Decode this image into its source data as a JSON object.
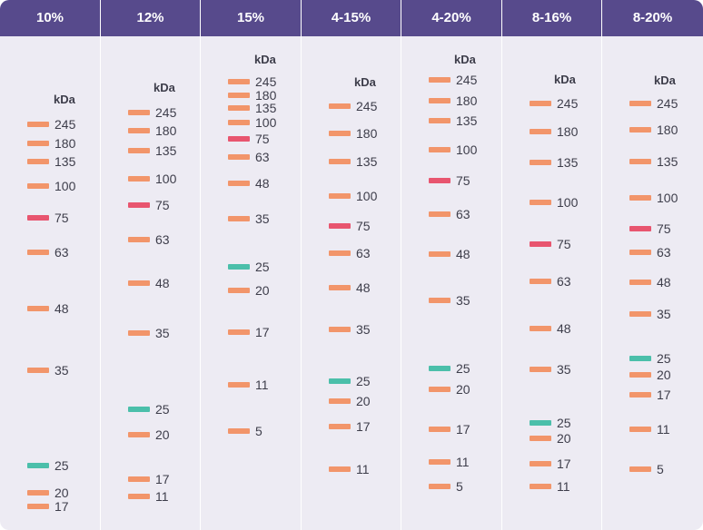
{
  "colors": {
    "header": "#574a8c",
    "background": "#edebf3",
    "band_default": "#f2956a",
    "band_75": "#e8556f",
    "band_25": "#4bbfaa"
  },
  "chart_data": {
    "type": "diagram",
    "unit_label": "kDa",
    "lanes": [
      {
        "title": "10%",
        "bands": [
          {
            "label": "245",
            "value": 245,
            "kind": "default"
          },
          {
            "label": "180",
            "value": 180,
            "kind": "default"
          },
          {
            "label": "135",
            "value": 135,
            "kind": "default"
          },
          {
            "label": "100",
            "value": 100,
            "kind": "default"
          },
          {
            "label": "75",
            "value": 75,
            "kind": "band_75"
          },
          {
            "label": "63",
            "value": 63,
            "kind": "default"
          },
          {
            "label": "48",
            "value": 48,
            "kind": "default"
          },
          {
            "label": "35",
            "value": 35,
            "kind": "default"
          },
          {
            "label": "25",
            "value": 25,
            "kind": "band_25"
          },
          {
            "label": "20",
            "value": 20,
            "kind": "default"
          },
          {
            "label": "17",
            "value": 17,
            "kind": "default"
          }
        ]
      },
      {
        "title": "12%",
        "bands": [
          {
            "label": "245",
            "value": 245,
            "kind": "default"
          },
          {
            "label": "180",
            "value": 180,
            "kind": "default"
          },
          {
            "label": "135",
            "value": 135,
            "kind": "default"
          },
          {
            "label": "100",
            "value": 100,
            "kind": "default"
          },
          {
            "label": "75",
            "value": 75,
            "kind": "band_75"
          },
          {
            "label": "63",
            "value": 63,
            "kind": "default"
          },
          {
            "label": "48",
            "value": 48,
            "kind": "default"
          },
          {
            "label": "35",
            "value": 35,
            "kind": "default"
          },
          {
            "label": "25",
            "value": 25,
            "kind": "band_25"
          },
          {
            "label": "20",
            "value": 20,
            "kind": "default"
          },
          {
            "label": "17",
            "value": 17,
            "kind": "default"
          },
          {
            "label": "11",
            "value": 11,
            "kind": "default"
          }
        ]
      },
      {
        "title": "15%",
        "bands": [
          {
            "label": "245",
            "value": 245,
            "kind": "default"
          },
          {
            "label": "180",
            "value": 180,
            "kind": "default"
          },
          {
            "label": "135",
            "value": 135,
            "kind": "default"
          },
          {
            "label": "100",
            "value": 100,
            "kind": "default"
          },
          {
            "label": "75",
            "value": 75,
            "kind": "band_75"
          },
          {
            "label": "63",
            "value": 63,
            "kind": "default"
          },
          {
            "label": "48",
            "value": 48,
            "kind": "default"
          },
          {
            "label": "35",
            "value": 35,
            "kind": "default"
          },
          {
            "label": "25",
            "value": 25,
            "kind": "band_25"
          },
          {
            "label": "20",
            "value": 20,
            "kind": "default"
          },
          {
            "label": "17",
            "value": 17,
            "kind": "default"
          },
          {
            "label": "11",
            "value": 11,
            "kind": "default"
          },
          {
            "label": "5",
            "value": 5,
            "kind": "default"
          }
        ]
      },
      {
        "title": "4-15%",
        "bands": [
          {
            "label": "245",
            "value": 245,
            "kind": "default"
          },
          {
            "label": "180",
            "value": 180,
            "kind": "default"
          },
          {
            "label": "135",
            "value": 135,
            "kind": "default"
          },
          {
            "label": "100",
            "value": 100,
            "kind": "default"
          },
          {
            "label": "75",
            "value": 75,
            "kind": "band_75"
          },
          {
            "label": "63",
            "value": 63,
            "kind": "default"
          },
          {
            "label": "48",
            "value": 48,
            "kind": "default"
          },
          {
            "label": "35",
            "value": 35,
            "kind": "default"
          },
          {
            "label": "25",
            "value": 25,
            "kind": "band_25"
          },
          {
            "label": "20",
            "value": 20,
            "kind": "default"
          },
          {
            "label": "17",
            "value": 17,
            "kind": "default"
          },
          {
            "label": "11",
            "value": 11,
            "kind": "default"
          }
        ]
      },
      {
        "title": "4-20%",
        "bands": [
          {
            "label": "245",
            "value": 245,
            "kind": "default"
          },
          {
            "label": "180",
            "value": 180,
            "kind": "default"
          },
          {
            "label": "135",
            "value": 135,
            "kind": "default"
          },
          {
            "label": "100",
            "value": 100,
            "kind": "default"
          },
          {
            "label": "75",
            "value": 75,
            "kind": "band_75"
          },
          {
            "label": "63",
            "value": 63,
            "kind": "default"
          },
          {
            "label": "48",
            "value": 48,
            "kind": "default"
          },
          {
            "label": "35",
            "value": 35,
            "kind": "default"
          },
          {
            "label": "25",
            "value": 25,
            "kind": "band_25"
          },
          {
            "label": "20",
            "value": 20,
            "kind": "default"
          },
          {
            "label": "17",
            "value": 17,
            "kind": "default"
          },
          {
            "label": "11",
            "value": 11,
            "kind": "default"
          },
          {
            "label": "5",
            "value": 5,
            "kind": "default"
          }
        ]
      },
      {
        "title": "8-16%",
        "bands": [
          {
            "label": "245",
            "value": 245,
            "kind": "default"
          },
          {
            "label": "180",
            "value": 180,
            "kind": "default"
          },
          {
            "label": "135",
            "value": 135,
            "kind": "default"
          },
          {
            "label": "100",
            "value": 100,
            "kind": "default"
          },
          {
            "label": "75",
            "value": 75,
            "kind": "band_75"
          },
          {
            "label": "63",
            "value": 63,
            "kind": "default"
          },
          {
            "label": "48",
            "value": 48,
            "kind": "default"
          },
          {
            "label": "35",
            "value": 35,
            "kind": "default"
          },
          {
            "label": "25",
            "value": 25,
            "kind": "band_25"
          },
          {
            "label": "20",
            "value": 20,
            "kind": "default"
          },
          {
            "label": "17",
            "value": 17,
            "kind": "default"
          },
          {
            "label": "11",
            "value": 11,
            "kind": "default"
          }
        ]
      },
      {
        "title": "8-20%",
        "bands": [
          {
            "label": "245",
            "value": 245,
            "kind": "default"
          },
          {
            "label": "180",
            "value": 180,
            "kind": "default"
          },
          {
            "label": "135",
            "value": 135,
            "kind": "default"
          },
          {
            "label": "100",
            "value": 100,
            "kind": "default"
          },
          {
            "label": "75",
            "value": 75,
            "kind": "band_75"
          },
          {
            "label": "63",
            "value": 63,
            "kind": "default"
          },
          {
            "label": "48",
            "value": 48,
            "kind": "default"
          },
          {
            "label": "35",
            "value": 35,
            "kind": "default"
          },
          {
            "label": "25",
            "value": 25,
            "kind": "band_25"
          },
          {
            "label": "20",
            "value": 20,
            "kind": "default"
          },
          {
            "label": "17",
            "value": 17,
            "kind": "default"
          },
          {
            "label": "11",
            "value": 11,
            "kind": "default"
          },
          {
            "label": "5",
            "value": 5,
            "kind": "default"
          }
        ]
      }
    ]
  }
}
